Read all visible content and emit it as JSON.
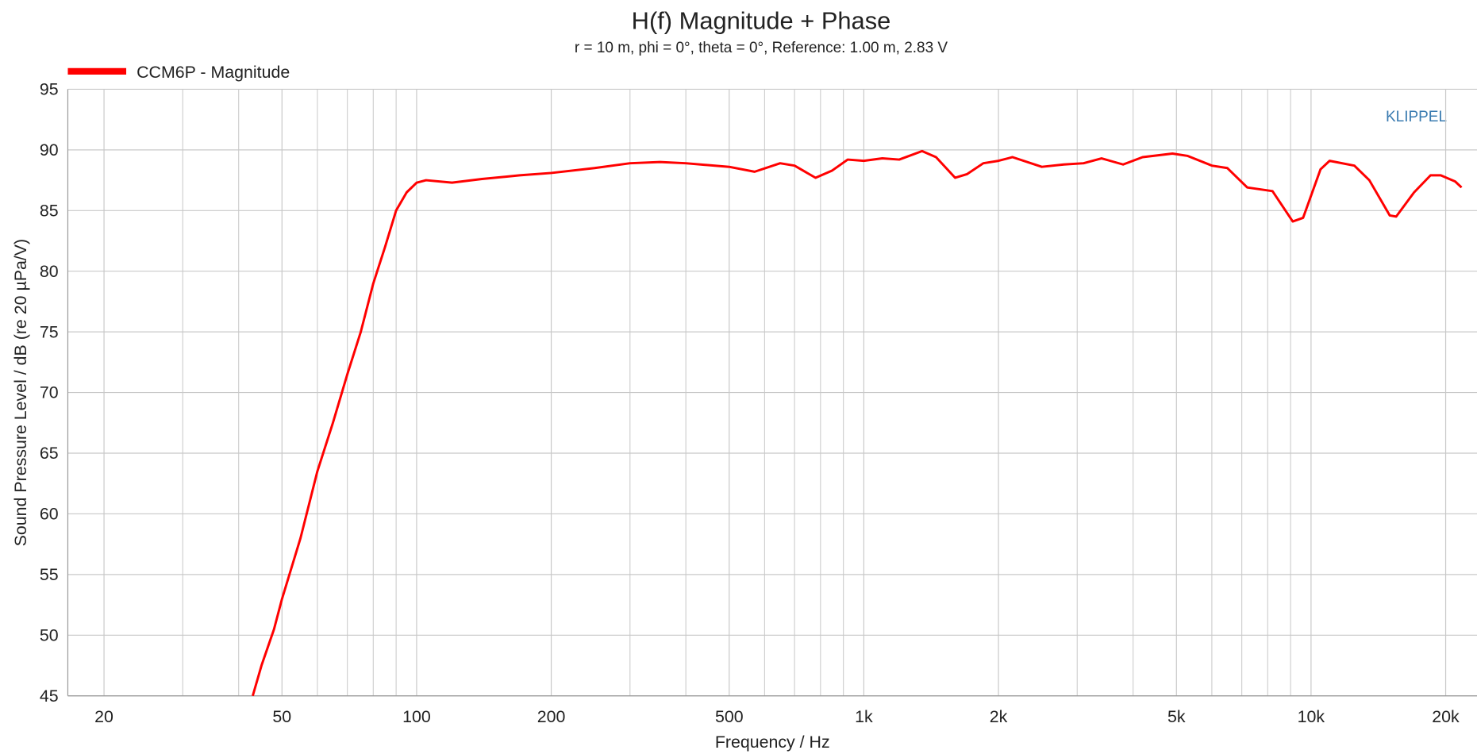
{
  "chart_data": {
    "type": "line",
    "title": "H(f) Magnitude + Phase",
    "subtitle": "r = 10 m, phi = 0°, theta = 0°, Reference: 1.00 m, 2.83 V",
    "x_label": "Frequency / Hz",
    "y_label": "Sound Pressure Level / dB (re 20 µPa/V)",
    "annotation": "KLIPPEL",
    "log_x": true,
    "grid": true,
    "legend": "top-left",
    "xlim": [
      16.6,
      23500
    ],
    "ylim": [
      45,
      95
    ],
    "xticks": [
      20,
      50,
      100,
      200,
      500,
      {
        "value": 1000,
        "label": "1k"
      },
      {
        "value": 2000,
        "label": "2k"
      },
      {
        "value": 5000,
        "label": "5k"
      },
      {
        "value": 10000,
        "label": "10k"
      },
      {
        "value": 20000,
        "label": "20k"
      }
    ],
    "x_minor_ticks": [
      30,
      40,
      60,
      70,
      80,
      90,
      300,
      400,
      600,
      700,
      800,
      900,
      3000,
      4000,
      6000,
      7000,
      8000,
      9000
    ],
    "yticks": [
      45,
      50,
      55,
      60,
      65,
      70,
      75,
      80,
      85,
      90,
      95
    ],
    "series": [
      {
        "name": "CCM6P - Magnitude",
        "color": "#ff0000",
        "x": [
          43,
          45,
          48,
          50,
          55,
          60,
          65,
          70,
          75,
          80,
          85,
          90,
          95,
          100,
          105,
          120,
          140,
          170,
          200,
          250,
          300,
          350,
          400,
          500,
          570,
          650,
          700,
          780,
          850,
          920,
          1000,
          1100,
          1200,
          1350,
          1450,
          1600,
          1700,
          1850,
          2000,
          2150,
          2500,
          2800,
          3100,
          3400,
          3800,
          4200,
          4900,
          5300,
          6000,
          6500,
          7200,
          8200,
          9100,
          9600,
          10500,
          11000,
          12500,
          13500,
          15000,
          15500,
          17000,
          18500,
          19500,
          21000,
          21700
        ],
        "values": [
          45,
          47.5,
          50.5,
          53,
          58,
          63.5,
          67.5,
          71.5,
          75,
          79,
          82,
          85,
          86.5,
          87.3,
          87.5,
          87.3,
          87.6,
          87.9,
          88.1,
          88.5,
          88.9,
          89,
          88.9,
          88.6,
          88.2,
          88.9,
          88.7,
          87.7,
          88.3,
          89.2,
          89.1,
          89.3,
          89.2,
          89.9,
          89.4,
          87.7,
          88.0,
          88.9,
          89.1,
          89.4,
          88.6,
          88.8,
          88.9,
          89.3,
          88.8,
          89.4,
          89.7,
          89.5,
          88.7,
          88.5,
          86.9,
          86.6,
          84.1,
          84.4,
          88.4,
          89.1,
          88.7,
          87.5,
          84.6,
          84.5,
          86.5,
          87.9,
          87.9,
          87.4,
          86.9
        ]
      }
    ]
  }
}
